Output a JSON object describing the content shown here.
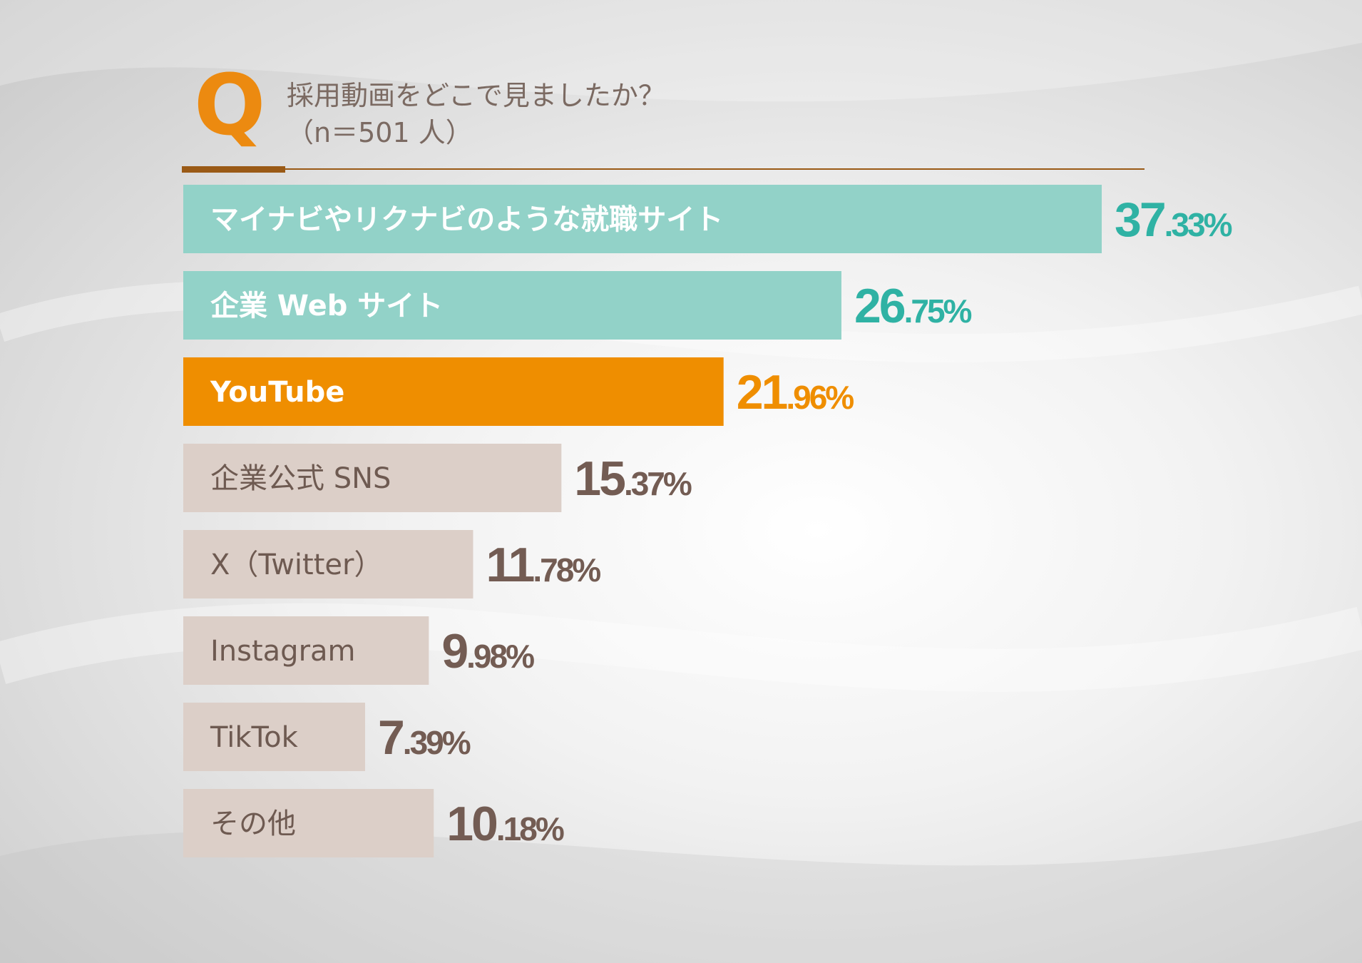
{
  "question": {
    "mark": "Q",
    "text": "採用動画をどこで見ましたか？",
    "sample": "（n＝501 人）"
  },
  "colors": {
    "teal": "#92d2c8",
    "teal_text": "#2fb2a4",
    "orange": "#ef8e00",
    "beige": "#dccfc8",
    "brown_text": "#735c53",
    "bar_label_light": "#ffffff",
    "bar_label_dark": "#6e5a51"
  },
  "chart_data": {
    "type": "bar",
    "orientation": "horizontal",
    "categories": [
      "マイナビやリクナビのような就職サイト",
      "企業 Web サイト",
      "YouTube",
      "企業公式 SNS",
      "X（Twitter）",
      "Instagram",
      "TikTok",
      "その他"
    ],
    "values": [
      37.33,
      26.75,
      21.96,
      15.37,
      11.78,
      9.98,
      7.39,
      10.18
    ],
    "unit": "%",
    "bar_colors": [
      "teal",
      "teal",
      "orange",
      "beige",
      "beige",
      "beige",
      "beige",
      "beige"
    ]
  }
}
